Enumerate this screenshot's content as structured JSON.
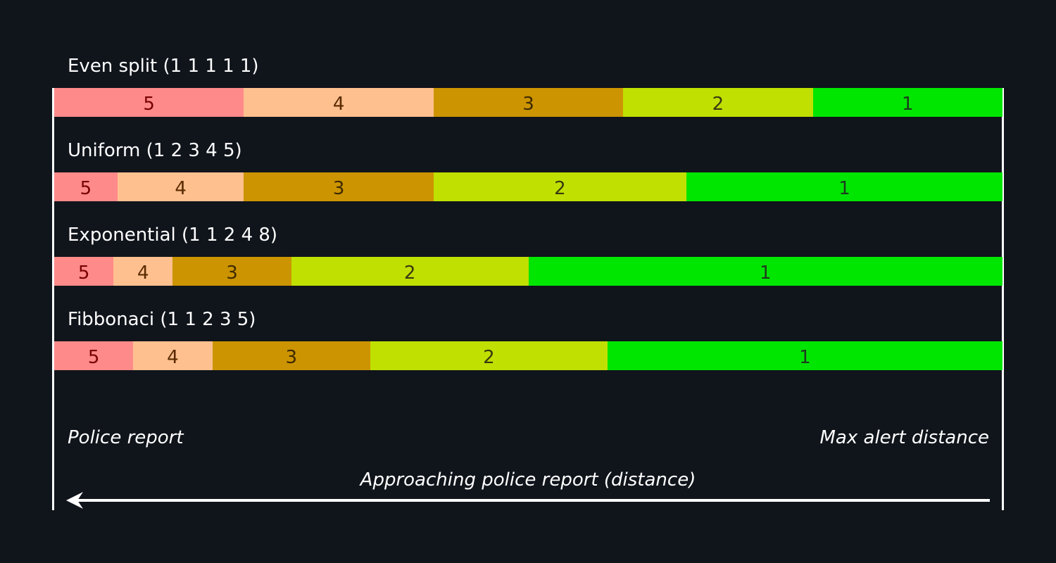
{
  "chart_data": {
    "type": "bar",
    "orientation": "horizontal-stacked",
    "segment_labels": [
      "5",
      "4",
      "3",
      "2",
      "1"
    ],
    "segment_colors": [
      "#ff8a8a",
      "#ffc08f",
      "#cc9400",
      "#bfe000",
      "#00e600"
    ],
    "segment_text_colors": [
      "#7a0000",
      "#5a2a00",
      "#3e2a00",
      "#3a3a10",
      "#1e3a1e"
    ],
    "rows": [
      {
        "title": "Even split (1 1 1 1 1)",
        "weights": [
          1,
          1,
          1,
          1,
          1
        ]
      },
      {
        "title": "Uniform (1 2 3 4 5)",
        "weights": [
          1,
          2,
          3,
          4,
          5
        ]
      },
      {
        "title": "Exponential (1 1 2 4 8)",
        "weights": [
          1,
          1,
          2,
          4,
          8
        ]
      },
      {
        "title": "Fibbonaci (1 1 2 3 5)",
        "weights": [
          1,
          1,
          2,
          3,
          5
        ]
      }
    ],
    "left_label": "Police report",
    "right_label": "Max alert distance",
    "axis_label": "Approaching police report (distance)"
  }
}
